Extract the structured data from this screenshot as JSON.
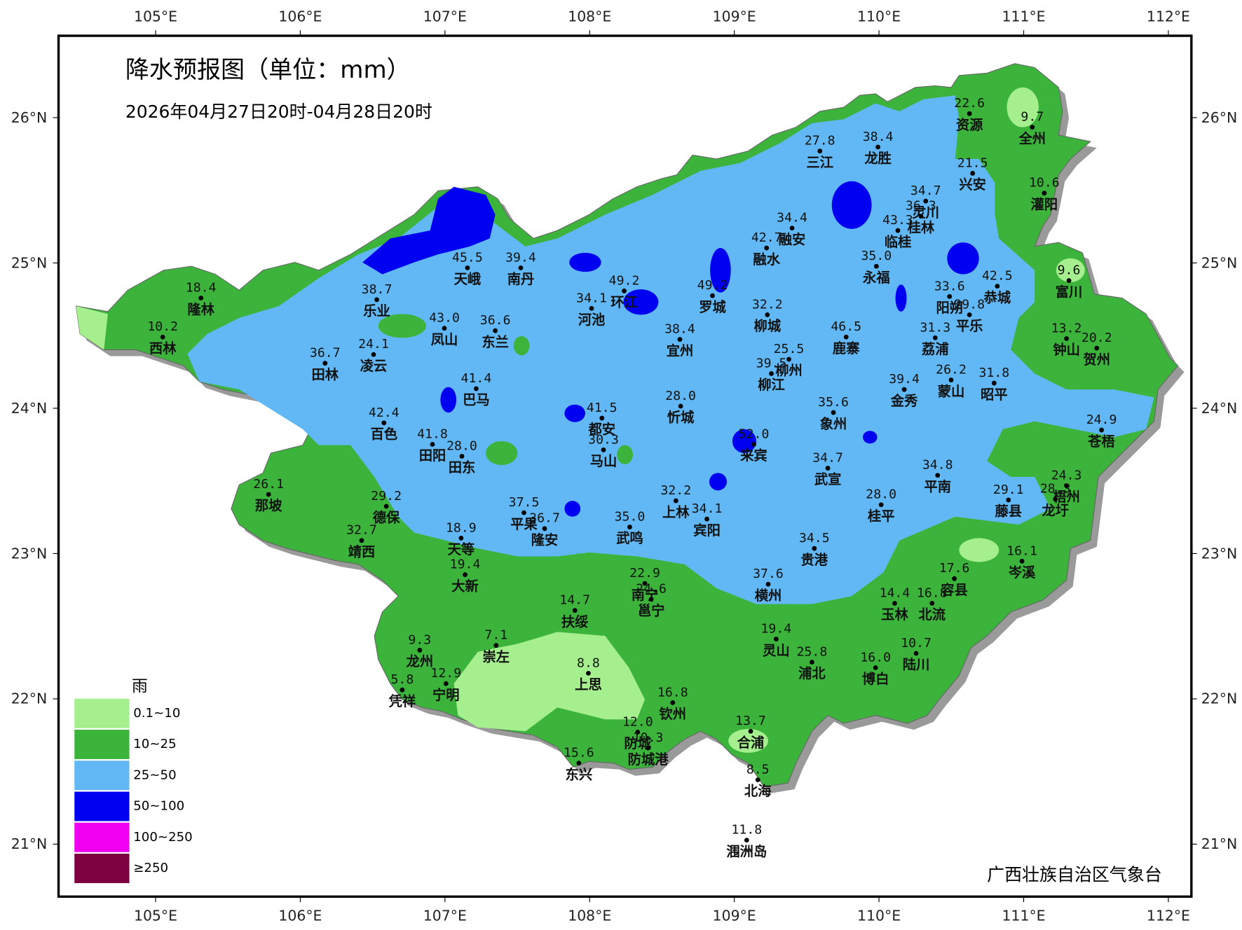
{
  "map": {
    "title": "降水预报图（单位：mm）",
    "subtitle": "2026年04月27日20时-04月28日20时",
    "x_ticks": [
      {
        "value": 105,
        "label": "105°E"
      },
      {
        "value": 106,
        "label": "106°E"
      },
      {
        "value": 107,
        "label": "107°E"
      },
      {
        "value": 108,
        "label": "108°E"
      },
      {
        "value": 109,
        "label": "109°E"
      },
      {
        "value": 110,
        "label": "110°E"
      },
      {
        "value": 111,
        "label": "111°E"
      },
      {
        "value": 112,
        "label": "112°E"
      }
    ],
    "y_ticks": [
      {
        "value": 21,
        "label": "21°N"
      },
      {
        "value": 22,
        "label": "22°N"
      },
      {
        "value": 23,
        "label": "23°N"
      },
      {
        "value": 24,
        "label": "24°N"
      },
      {
        "value": 25,
        "label": "25°N"
      },
      {
        "value": 26,
        "label": "26°N"
      }
    ],
    "stations": [
      {
        "value": "22.6",
        "name": "资源"
      },
      {
        "value": "9.7",
        "name": "全州"
      },
      {
        "value": "27.8",
        "name": "三江"
      },
      {
        "value": "38.4",
        "name": "龙胜"
      },
      {
        "value": "21.5",
        "name": "兴安"
      },
      {
        "value": "10.6",
        "name": "灌阳"
      },
      {
        "value": "34.7",
        "name": "灵川"
      },
      {
        "value": "36.3",
        "name": "桂林"
      },
      {
        "value": "43.3",
        "name": "临桂"
      },
      {
        "value": "34.4",
        "name": "融安"
      },
      {
        "value": "42.7",
        "name": "融水"
      },
      {
        "value": "35.0",
        "name": "永福"
      },
      {
        "value": "45.5",
        "name": "天峨"
      },
      {
        "value": "39.4",
        "name": "南丹"
      },
      {
        "value": "49.2",
        "name": "环江"
      },
      {
        "value": "49.2",
        "name": "罗城"
      },
      {
        "value": "34.1",
        "name": "河池"
      },
      {
        "value": "38.7",
        "name": "乐业"
      },
      {
        "value": "18.4",
        "name": "隆林"
      },
      {
        "value": "33.6",
        "name": "阳朔"
      },
      {
        "value": "42.5",
        "name": "恭城"
      },
      {
        "value": "9.6",
        "name": "富川"
      },
      {
        "value": "10.2",
        "name": "西林"
      },
      {
        "value": "43.0",
        "name": "凤山"
      },
      {
        "value": "36.6",
        "name": "东兰"
      },
      {
        "value": "32.2",
        "name": "柳城"
      },
      {
        "value": "38.4",
        "name": "宜州"
      },
      {
        "value": "46.5",
        "name": "鹿寨"
      },
      {
        "value": "31.3",
        "name": "荔浦"
      },
      {
        "value": "29.8",
        "name": "平乐"
      },
      {
        "value": "13.2",
        "name": "钟山"
      },
      {
        "value": "20.2",
        "name": "贺州"
      },
      {
        "value": "36.7",
        "name": "田林"
      },
      {
        "value": "24.1",
        "name": "凌云"
      },
      {
        "value": "25.5",
        "name": "柳州"
      },
      {
        "value": "39.5",
        "name": "柳江"
      },
      {
        "value": "26.2",
        "name": "蒙山"
      },
      {
        "value": "31.8",
        "name": "昭平"
      },
      {
        "value": "39.4",
        "name": "金秀"
      },
      {
        "value": "41.4",
        "name": "巴马"
      },
      {
        "value": "28.0",
        "name": "忻城"
      },
      {
        "value": "35.6",
        "name": "象州"
      },
      {
        "value": "42.4",
        "name": "百色"
      },
      {
        "value": "41.5",
        "name": "都安"
      },
      {
        "value": "24.9",
        "name": "苍梧"
      },
      {
        "value": "41.8",
        "name": "田阳"
      },
      {
        "value": "28.0",
        "name": "田东"
      },
      {
        "value": "30.3",
        "name": "马山"
      },
      {
        "value": "52.0",
        "name": "来宾"
      },
      {
        "value": "34.7",
        "name": "武宣"
      },
      {
        "value": "34.8",
        "name": "平南"
      },
      {
        "value": "26.1",
        "name": "那坡"
      },
      {
        "value": "24.3",
        "name": "梧州"
      },
      {
        "value": "28.3",
        "name": "龙圩"
      },
      {
        "value": "29.1",
        "name": "藤县"
      },
      {
        "value": "29.2",
        "name": "德保"
      },
      {
        "value": "32.2",
        "name": "上林"
      },
      {
        "value": "34.1",
        "name": "宾阳"
      },
      {
        "value": "28.0",
        "name": "桂平"
      },
      {
        "value": "37.5",
        "name": "平果"
      },
      {
        "value": "36.7",
        "name": "隆安"
      },
      {
        "value": "35.0",
        "name": "武鸣"
      },
      {
        "value": "32.7",
        "name": "靖西"
      },
      {
        "value": "18.9",
        "name": "天等"
      },
      {
        "value": "34.5",
        "name": "贵港"
      },
      {
        "value": "16.1",
        "name": "岑溪"
      },
      {
        "value": "19.4",
        "name": "大新"
      },
      {
        "value": "37.6",
        "name": "横州"
      },
      {
        "value": "17.6",
        "name": "容县"
      },
      {
        "value": "22.9",
        "name": "南宁"
      },
      {
        "value": "14.7",
        "name": "扶绥"
      },
      {
        "value": "24.6",
        "name": "邕宁"
      },
      {
        "value": "14.4",
        "name": "玉林"
      },
      {
        "value": "16.8",
        "name": "北流"
      },
      {
        "value": "19.4",
        "name": "灵山"
      },
      {
        "value": "25.8",
        "name": "浦北"
      },
      {
        "value": "16.0",
        "name": "博白"
      },
      {
        "value": "10.7",
        "name": "陆川"
      },
      {
        "value": "9.3",
        "name": "龙州"
      },
      {
        "value": "7.1",
        "name": "崇左"
      },
      {
        "value": "8.8",
        "name": "上思"
      },
      {
        "value": "12.9",
        "name": "宁明"
      },
      {
        "value": "5.8",
        "name": "凭祥"
      },
      {
        "value": "16.8",
        "name": "钦州"
      },
      {
        "value": "12.0",
        "name": "防城"
      },
      {
        "value": "10.3",
        "name": "防城港"
      },
      {
        "value": "13.7",
        "name": "合浦"
      },
      {
        "value": "15.6",
        "name": "东兴"
      },
      {
        "value": "8.5",
        "name": "北海"
      },
      {
        "value": "11.8",
        "name": "涠洲岛"
      }
    ],
    "legend": {
      "title": "雨",
      "items": [
        {
          "label": "0.1~10",
          "color": "#a6ef8f"
        },
        {
          "label": "10~25",
          "color": "#3cb43c"
        },
        {
          "label": "25~50",
          "color": "#62b8f4"
        },
        {
          "label": "50~100",
          "color": "#0000f0"
        },
        {
          "label": "100~250",
          "color": "#f000f0"
        },
        {
          "label": "≥250",
          "color": "#7d0040"
        }
      ]
    },
    "source": "广西壮族自治区气象台"
  }
}
